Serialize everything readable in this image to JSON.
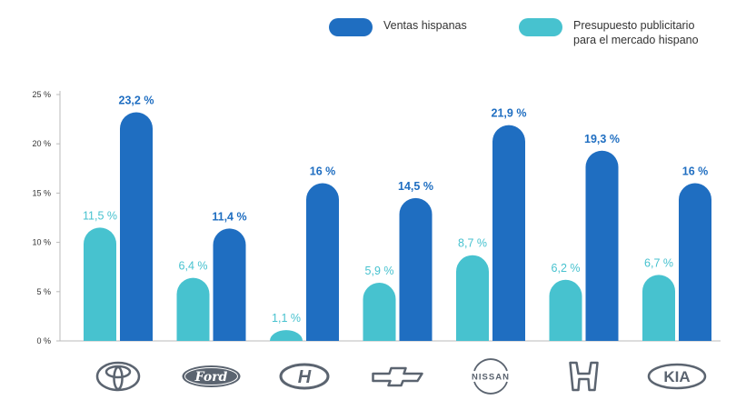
{
  "colors": {
    "ventas": "#1f6ec1",
    "presupuesto": "#47c2cf",
    "axis_text": "#333333",
    "grid": "#bbbbbb",
    "logo": "#5b6470"
  },
  "legend": {
    "ventas": {
      "line1": "Ventas hispanas"
    },
    "presupuesto": {
      "line1": "Presupuesto publicitario",
      "line2": "para el mercado hispano"
    }
  },
  "chart_data": {
    "type": "bar",
    "categories": [
      "Toyota",
      "Ford",
      "Hyundai",
      "Chevrolet",
      "Nissan",
      "Honda",
      "Kia"
    ],
    "category_icons": [
      "toyota-logo-icon",
      "ford-logo-icon",
      "hyundai-logo-icon",
      "chevrolet-logo-icon",
      "nissan-logo-icon",
      "honda-logo-icon",
      "kia-logo-icon"
    ],
    "series": [
      {
        "name": "Presupuesto publicitario para el mercado hispano",
        "key": "presupuesto",
        "values": [
          11.5,
          6.4,
          1.1,
          5.9,
          8.7,
          6.2,
          6.7
        ],
        "labels": [
          "11,5 %",
          "6,4 %",
          "1,1 %",
          "5,9 %",
          "8,7 %",
          "6,2 %",
          "6,7 %"
        ]
      },
      {
        "name": "Ventas hispanas",
        "key": "ventas",
        "values": [
          23.2,
          11.4,
          16,
          14.5,
          21.9,
          19.3,
          16
        ],
        "labels": [
          "23,2 %",
          "11,4 %",
          "16 %",
          "14,5 %",
          "21,9 %",
          "19,3 %",
          "16 %"
        ]
      }
    ],
    "yticks": [
      0,
      5,
      10,
      15,
      20,
      25
    ],
    "ytick_labels": [
      "0 %",
      "5 %",
      "10 %",
      "15 %",
      "20 %",
      "25 %"
    ],
    "ylim": [
      0,
      25
    ],
    "legend_position": "top-right",
    "grid": false
  }
}
